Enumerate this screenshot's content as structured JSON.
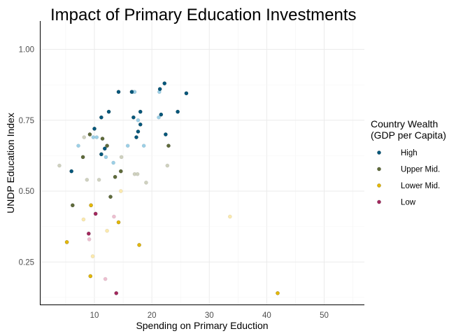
{
  "chart_data": {
    "type": "scatter",
    "title": "Impact of Primary Education Investments",
    "xlabel": "Spending on Primary Eduction",
    "ylabel": "UNDP Education Index",
    "xlim": [
      0.5,
      57
    ],
    "ylim": [
      0.1,
      1.1
    ],
    "x_ticks": [
      10,
      20,
      30,
      40,
      50
    ],
    "x_tick_labels": [
      "10",
      "20",
      "30",
      "40",
      "50"
    ],
    "y_ticks": [
      0.25,
      0.5,
      0.75,
      1.0
    ],
    "y_tick_labels": [
      "0.25",
      "0.50",
      "0.75",
      "1.00"
    ],
    "grid": true,
    "legend": {
      "title_line1": "Country Wealth",
      "title_line2": "(GDP per Capita)",
      "position": "right"
    },
    "series": [
      {
        "name": "High",
        "color": "#00577b",
        "faded_color": "#9ccfe6",
        "points": [
          {
            "x": 6.0,
            "y": 0.57
          },
          {
            "x": 10.0,
            "y": 0.72
          },
          {
            "x": 11.2,
            "y": 0.76
          },
          {
            "x": 11.2,
            "y": 0.63
          },
          {
            "x": 11.8,
            "y": 0.65
          },
          {
            "x": 12.5,
            "y": 0.78
          },
          {
            "x": 14.2,
            "y": 0.85
          },
          {
            "x": 16.5,
            "y": 0.85
          },
          {
            "x": 16.8,
            "y": 0.76
          },
          {
            "x": 17.3,
            "y": 0.69
          },
          {
            "x": 17.6,
            "y": 0.71
          },
          {
            "x": 18.0,
            "y": 0.735
          },
          {
            "x": 18.0,
            "y": 0.78
          },
          {
            "x": 21.4,
            "y": 0.86
          },
          {
            "x": 21.6,
            "y": 0.77
          },
          {
            "x": 22.2,
            "y": 0.88
          },
          {
            "x": 22.4,
            "y": 0.7
          },
          {
            "x": 24.5,
            "y": 0.78
          },
          {
            "x": 26.0,
            "y": 0.845
          }
        ],
        "faded_points": [
          {
            "x": 7.2,
            "y": 0.66
          },
          {
            "x": 9.8,
            "y": 0.69
          },
          {
            "x": 10.4,
            "y": 0.69
          },
          {
            "x": 12.0,
            "y": 0.62
          },
          {
            "x": 13.3,
            "y": 0.6
          },
          {
            "x": 15.8,
            "y": 0.66
          },
          {
            "x": 16.7,
            "y": 0.85
          },
          {
            "x": 17.0,
            "y": 0.85
          },
          {
            "x": 17.6,
            "y": 0.75
          },
          {
            "x": 18.6,
            "y": 0.66
          },
          {
            "x": 21.2,
            "y": 0.76
          },
          {
            "x": 21.3,
            "y": 0.85
          }
        ]
      },
      {
        "name": "Upper Mid.",
        "color": "#5f6b3a",
        "faded_color": "#cfd1bf",
        "points": [
          {
            "x": 6.2,
            "y": 0.45
          },
          {
            "x": 8.0,
            "y": 0.62
          },
          {
            "x": 9.2,
            "y": 0.7
          },
          {
            "x": 11.4,
            "y": 0.685
          },
          {
            "x": 12.2,
            "y": 0.66
          },
          {
            "x": 12.8,
            "y": 0.48
          },
          {
            "x": 13.6,
            "y": 0.55
          },
          {
            "x": 14.6,
            "y": 0.57
          },
          {
            "x": 22.9,
            "y": 0.66
          }
        ],
        "faded_points": [
          {
            "x": 3.9,
            "y": 0.59
          },
          {
            "x": 8.2,
            "y": 0.69
          },
          {
            "x": 8.7,
            "y": 0.54
          },
          {
            "x": 10.8,
            "y": 0.54
          },
          {
            "x": 14.7,
            "y": 0.62
          },
          {
            "x": 17.0,
            "y": 0.56
          },
          {
            "x": 17.5,
            "y": 0.56
          },
          {
            "x": 19.0,
            "y": 0.53
          },
          {
            "x": 22.7,
            "y": 0.59
          }
        ]
      },
      {
        "name": "Lower Mid.",
        "color": "#e5b800",
        "faded_color": "#fbe9ad",
        "points": [
          {
            "x": 5.2,
            "y": 0.32
          },
          {
            "x": 9.4,
            "y": 0.45
          },
          {
            "x": 9.3,
            "y": 0.2
          },
          {
            "x": 14.2,
            "y": 0.39
          },
          {
            "x": 17.8,
            "y": 0.31
          },
          {
            "x": 41.9,
            "y": 0.14
          }
        ],
        "faded_points": [
          {
            "x": 8.1,
            "y": 0.4
          },
          {
            "x": 9.7,
            "y": 0.27
          },
          {
            "x": 12.2,
            "y": 0.36
          },
          {
            "x": 14.6,
            "y": 0.5
          },
          {
            "x": 33.6,
            "y": 0.41
          }
        ]
      },
      {
        "name": "Low",
        "color": "#a4285e",
        "faded_color": "#edbfd0",
        "points": [
          {
            "x": 9.0,
            "y": 0.35
          },
          {
            "x": 10.2,
            "y": 0.42
          },
          {
            "x": 13.8,
            "y": 0.14
          }
        ],
        "faded_points": [
          {
            "x": 9.1,
            "y": 0.33
          },
          {
            "x": 11.9,
            "y": 0.19
          },
          {
            "x": 13.4,
            "y": 0.41
          }
        ]
      }
    ]
  }
}
